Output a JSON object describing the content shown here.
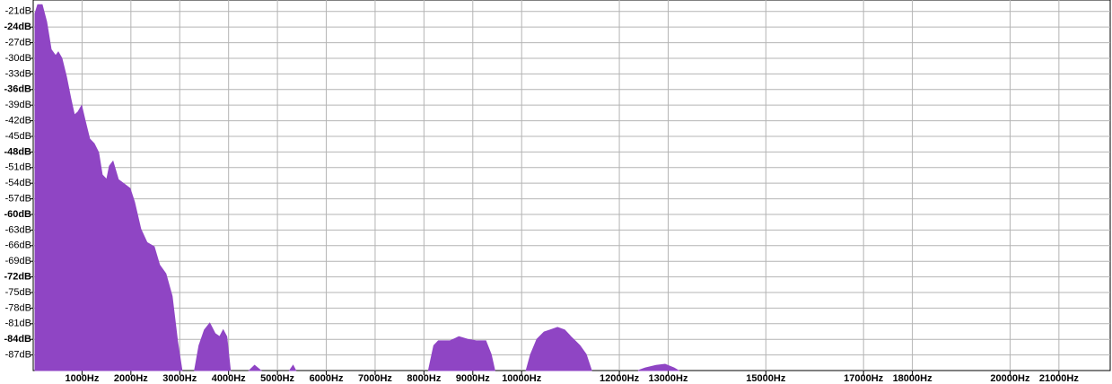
{
  "chart_data": {
    "type": "area",
    "color": "#8f45c4",
    "grid": true,
    "xlim": [
      0,
      22050
    ],
    "ylim": [
      -90,
      -18.8
    ],
    "xticks": [
      {
        "value": 1000,
        "label": "1000Hz"
      },
      {
        "value": 2000,
        "label": "2000Hz"
      },
      {
        "value": 3000,
        "label": "3000Hz"
      },
      {
        "value": 4000,
        "label": "4000Hz"
      },
      {
        "value": 5000,
        "label": "5000Hz"
      },
      {
        "value": 6000,
        "label": "6000Hz"
      },
      {
        "value": 7000,
        "label": "7000Hz"
      },
      {
        "value": 8000,
        "label": "8000Hz"
      },
      {
        "value": 9000,
        "label": "9000Hz"
      },
      {
        "value": 10000,
        "label": "10000Hz"
      },
      {
        "value": 12000,
        "label": "12000Hz"
      },
      {
        "value": 13000,
        "label": "13000Hz"
      },
      {
        "value": 15000,
        "label": "15000Hz"
      },
      {
        "value": 17000,
        "label": "17000Hz"
      },
      {
        "value": 18000,
        "label": "18000Hz"
      },
      {
        "value": 20000,
        "label": "20000Hz"
      },
      {
        "value": 21000,
        "label": "21000Hz"
      }
    ],
    "yticks": [
      {
        "value": -21,
        "label": "-21dB"
      },
      {
        "value": -24,
        "label": "-24dB"
      },
      {
        "value": -27,
        "label": "-27dB"
      },
      {
        "value": -30,
        "label": "-30dB"
      },
      {
        "value": -33,
        "label": "-33dB"
      },
      {
        "value": -36,
        "label": "-36dB"
      },
      {
        "value": -39,
        "label": "-39dB"
      },
      {
        "value": -42,
        "label": "-42dB"
      },
      {
        "value": -45,
        "label": "-45dB"
      },
      {
        "value": -48,
        "label": "-48dB"
      },
      {
        "value": -51,
        "label": "-51dB"
      },
      {
        "value": -54,
        "label": "-54dB"
      },
      {
        "value": -57,
        "label": "-57dB"
      },
      {
        "value": -60,
        "label": "-60dB"
      },
      {
        "value": -63,
        "label": "-63dB"
      },
      {
        "value": -66,
        "label": "-66dB"
      },
      {
        "value": -69,
        "label": "-69dB"
      },
      {
        "value": -72,
        "label": "-72dB"
      },
      {
        "value": -75,
        "label": "-75dB"
      },
      {
        "value": -78,
        "label": "-78dB"
      },
      {
        "value": -81,
        "label": "-81dB"
      },
      {
        "value": -84,
        "label": "-84dB"
      },
      {
        "value": -87,
        "label": "-87dB"
      }
    ],
    "x": [
      37,
      92,
      183,
      275,
      367,
      459,
      514,
      587,
      679,
      771,
      844,
      917,
      991,
      1064,
      1156,
      1248,
      1339,
      1413,
      1505,
      1560,
      1633,
      1743,
      1872,
      1982,
      2073,
      2202,
      2330,
      2477,
      2587,
      2716,
      2844,
      2954,
      3046,
      null,
      3303,
      3394,
      3505,
      3615,
      3725,
      3817,
      3890,
      3963,
      4037,
      null,
      4422,
      4532,
      4661,
      null,
      5248,
      5321,
      5376,
      null,
      8092,
      8202,
      8294,
      8532,
      8716,
      8899,
      9083,
      9266,
      9376,
      9450,
      null,
      10092,
      10183,
      10312,
      10459,
      10587,
      10734,
      10881,
      11009,
      11193,
      11321,
      11431,
      null,
      12385,
      12532,
      12752,
      12936,
      13119,
      13211
    ],
    "values": [
      -21.4,
      -19.7,
      -19.7,
      -23,
      -28.3,
      -29.5,
      -28.8,
      -30,
      -33.5,
      -37.8,
      -40.9,
      -40.3,
      -39.1,
      -42,
      -45.5,
      -46.4,
      -48.1,
      -52.4,
      -53.3,
      -50.7,
      -49.8,
      -53.3,
      -54.2,
      -55,
      -57.6,
      -62.8,
      -65.4,
      -66.2,
      -69.7,
      -71.4,
      -75.7,
      -84.3,
      -90,
      null,
      -90,
      -85.2,
      -82.2,
      -80.9,
      -82.9,
      -83.5,
      -82.2,
      -83.5,
      -90,
      null,
      -90,
      -89,
      -90,
      null,
      -90,
      -89,
      -90,
      null,
      -90,
      -85.2,
      -84.3,
      -84.3,
      -83.5,
      -84,
      -84.3,
      -84.3,
      -86.9,
      -90,
      null,
      -90,
      -86.9,
      -84,
      -82.6,
      -82.2,
      -81.7,
      -82.2,
      -83.5,
      -85.2,
      -86.9,
      -90,
      null,
      -90,
      -89.5,
      -89,
      -88.8,
      -89.5,
      -90
    ]
  }
}
